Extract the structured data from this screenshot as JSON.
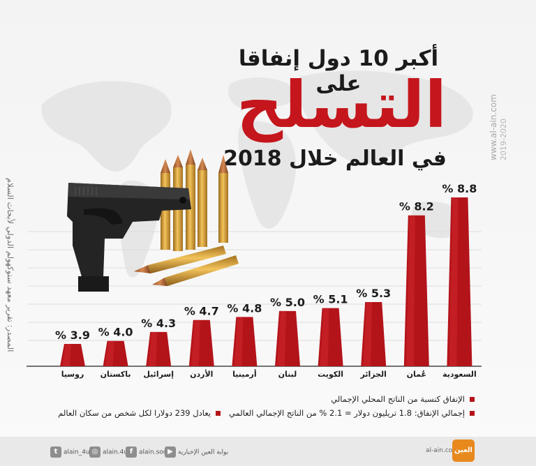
{
  "title": {
    "line1": "أكبر 10 دول إنفاقا على",
    "line2": "التسلح",
    "line3": "في العالم خلال 2018"
  },
  "source": "المصدر: تقرير معهد ستوكهولم الدولي لأبحاث السلام",
  "watermark": {
    "site": "www.al-ain.com",
    "years": "2019-2020"
  },
  "chart_data": {
    "type": "bar",
    "categories": [
      "روسيا",
      "باكستان",
      "إسرائيل",
      "الأردن",
      "أرمينيا",
      "لبنان",
      "الكويت",
      "الجزائر",
      "عُمان",
      "السعودية"
    ],
    "values": [
      3.9,
      4.0,
      4.3,
      4.7,
      4.8,
      5.0,
      5.1,
      5.3,
      8.2,
      8.8
    ],
    "value_labels": [
      "% 3.9",
      "% 4.0",
      "% 4.3",
      "% 4.7",
      "% 4.8",
      "% 5.0",
      "% 5.1",
      "% 5.3",
      "% 8.2",
      "% 8.8"
    ],
    "unit": "%",
    "bar_color": "#b3141a",
    "bar_color_light": "#d52a30",
    "grid": true
  },
  "legend": {
    "item1": "الإنفاق كنسبة من الناتج المحلي الإجمالي",
    "item2": "إجمالي الإنفاق: 1.8 تريليون دولار = 2.1 % من الناتج الإجمالي العالمي",
    "item3": "يعادل 239 دولارا لكل شخص من سكان العالم"
  },
  "footer": {
    "twitter": "alain_4u",
    "instagram": "alain.4u",
    "facebook": "alain.social",
    "youtube": "بوابة العين الإخبارية",
    "site": "al-ain.com",
    "logo": "العين"
  }
}
